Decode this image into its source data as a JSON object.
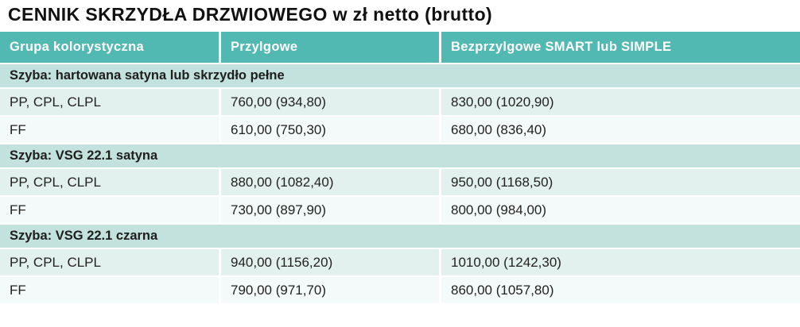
{
  "page": {
    "title": "CENNIK SKRZYDŁA DRZWIOWEGO w zł netto (brutto)"
  },
  "table": {
    "columns": [
      "Grupa kolorystyczna",
      "Przylgowe",
      "Bezprzylgowe SMART lub SIMPLE"
    ],
    "sections": [
      {
        "label": "Szyba: hartowana satyna lub skrzydło pełne",
        "rows": [
          [
            "PP, CPL, CLPL",
            "760,00 (934,80)",
            "830,00 (1020,90)"
          ],
          [
            "FF",
            "610,00 (750,30)",
            "680,00 (836,40)"
          ]
        ]
      },
      {
        "label": "Szyba: VSG 22.1 satyna",
        "rows": [
          [
            "PP, CPL, CLPL",
            "880,00 (1082,40)",
            "950,00 (1168,50)"
          ],
          [
            "FF",
            "730,00 (897,90)",
            "800,00 (984,00)"
          ]
        ]
      },
      {
        "label": "Szyba: VSG 22.1 czarna",
        "rows": [
          [
            "PP, CPL, CLPL",
            "940,00 (1156,20)",
            "1010,00 (1242,30)"
          ],
          [
            "FF",
            "790,00 (971,70)",
            "860,00 (1057,80)"
          ]
        ]
      }
    ]
  },
  "colors": {
    "header_bg": "#52b8b2",
    "section_bg": "#c3e1dd",
    "row_a_bg": "#e3f1ee",
    "row_b_bg": "#f4faf9",
    "header_text": "#ffffff",
    "text": "#1e1e1c"
  }
}
